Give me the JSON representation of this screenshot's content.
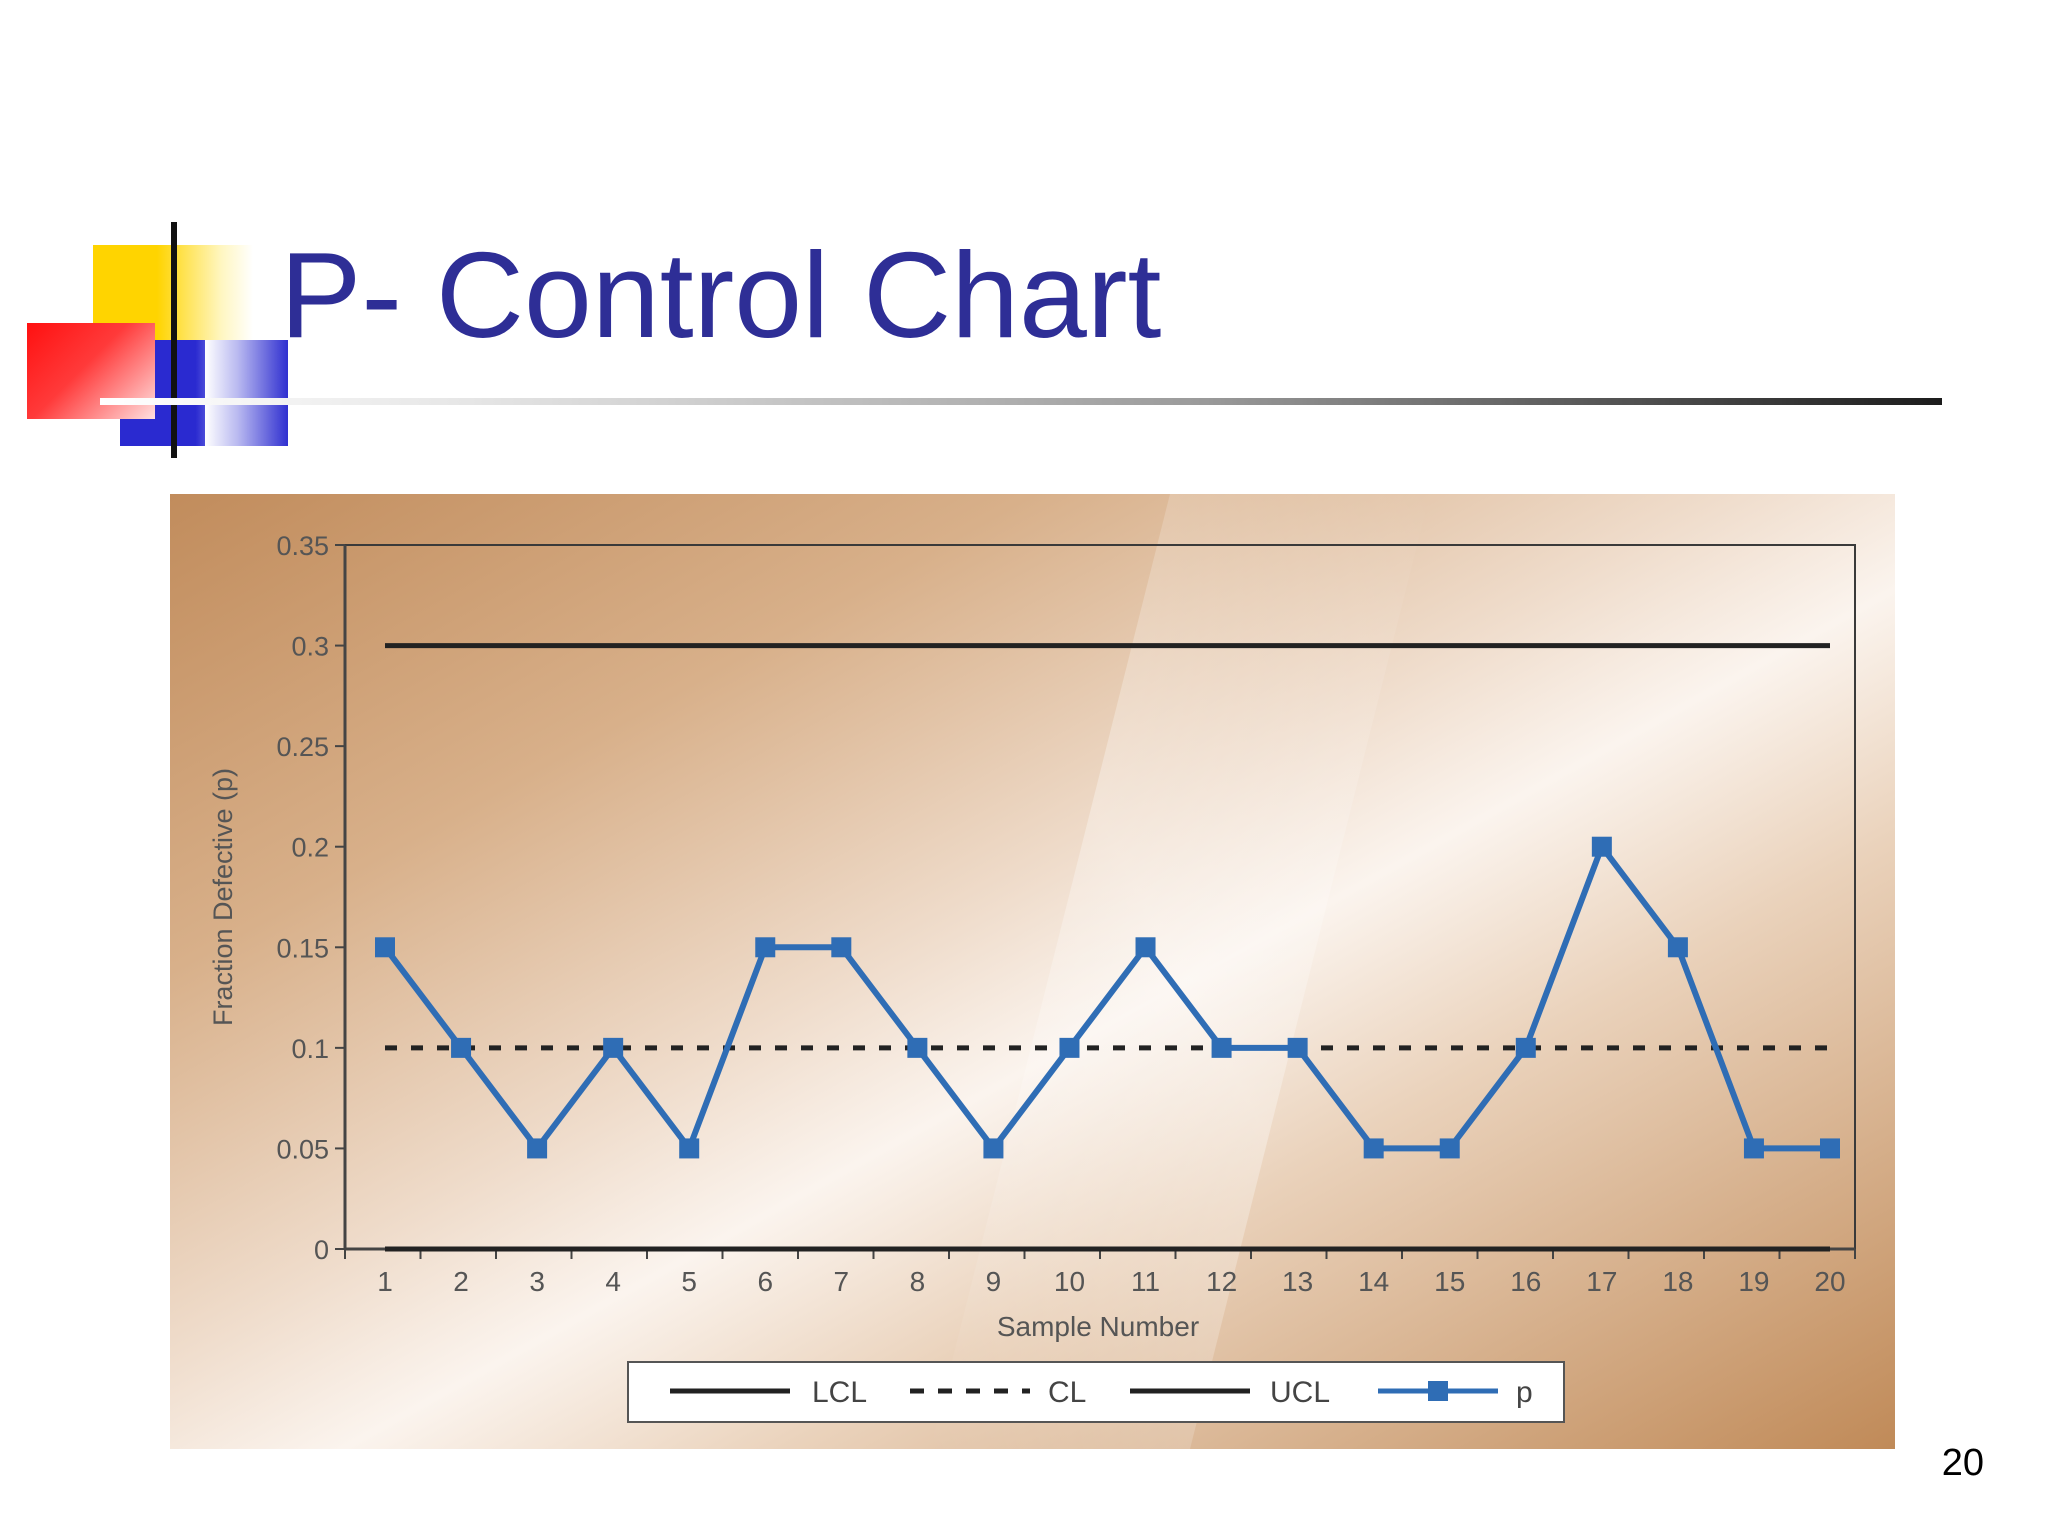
{
  "slide": {
    "title": "P- Control Chart",
    "page_number": "20"
  },
  "colors": {
    "title": "#2e2e96",
    "series_p": "#2f6db5",
    "limits": "#222222",
    "chart_background": "#c79767"
  },
  "chart_data": {
    "type": "line",
    "title": "",
    "xlabel": "Sample Number",
    "ylabel": "Fraction Defective (p)",
    "categories": [
      "1",
      "2",
      "3",
      "4",
      "5",
      "6",
      "7",
      "8",
      "9",
      "10",
      "11",
      "12",
      "13",
      "14",
      "15",
      "16",
      "17",
      "18",
      "19",
      "20"
    ],
    "y_ticks": [
      "0",
      "0.05",
      "0.1",
      "0.15",
      "0.2",
      "0.25",
      "0.3",
      "0.35"
    ],
    "ylim": [
      0,
      0.35
    ],
    "grid": false,
    "legend_position": "bottom",
    "series": [
      {
        "name": "LCL",
        "style": "solid",
        "values": [
          0,
          0,
          0,
          0,
          0,
          0,
          0,
          0,
          0,
          0,
          0,
          0,
          0,
          0,
          0,
          0,
          0,
          0,
          0,
          0
        ]
      },
      {
        "name": "CL",
        "style": "dashed",
        "values": [
          0.1,
          0.1,
          0.1,
          0.1,
          0.1,
          0.1,
          0.1,
          0.1,
          0.1,
          0.1,
          0.1,
          0.1,
          0.1,
          0.1,
          0.1,
          0.1,
          0.1,
          0.1,
          0.1,
          0.1
        ]
      },
      {
        "name": "UCL",
        "style": "solid",
        "values": [
          0.3,
          0.3,
          0.3,
          0.3,
          0.3,
          0.3,
          0.3,
          0.3,
          0.3,
          0.3,
          0.3,
          0.3,
          0.3,
          0.3,
          0.3,
          0.3,
          0.3,
          0.3,
          0.3,
          0.3
        ]
      },
      {
        "name": "p",
        "style": "solid-marker",
        "values": [
          0.15,
          0.1,
          0.05,
          0.1,
          0.05,
          0.15,
          0.15,
          0.1,
          0.05,
          0.1,
          0.15,
          0.1,
          0.1,
          0.05,
          0.05,
          0.1,
          0.2,
          0.15,
          0.05,
          0.05
        ]
      }
    ]
  }
}
